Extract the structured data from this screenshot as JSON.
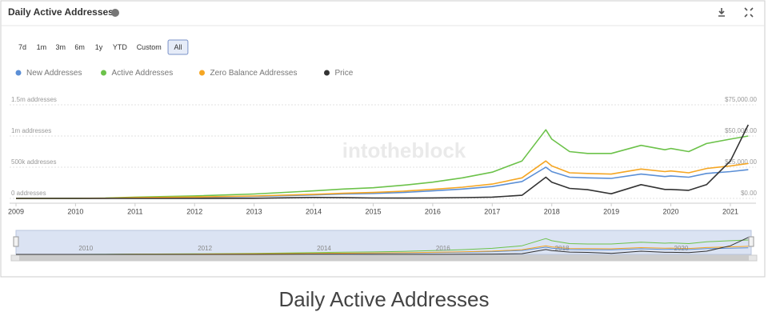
{
  "header": {
    "title": "Daily Active Addresses"
  },
  "toolbar": {
    "buttons": [
      "7d",
      "1m",
      "3m",
      "6m",
      "1y",
      "YTD",
      "Custom",
      "All"
    ],
    "active": "All"
  },
  "caption": "Daily Active Addresses",
  "chart_data": {
    "type": "line",
    "watermark": "intotheblock",
    "x": [
      2009,
      2010,
      2010.5,
      2011,
      2012,
      2013,
      2014,
      2014.5,
      2015,
      2015.5,
      2016,
      2016.5,
      2017,
      2017.5,
      2017.9,
      2018,
      2018.3,
      2018.6,
      2019,
      2019.5,
      2019.9,
      2020,
      2020.3,
      2020.6,
      2021,
      2021.3
    ],
    "xlim": [
      2009,
      2021.35
    ],
    "xticks": [
      2009,
      2010,
      2011,
      2012,
      2013,
      2014,
      2015,
      2016,
      2017,
      2018,
      2019,
      2020,
      2021
    ],
    "ylim": [
      0,
      1500000
    ],
    "yticks": [
      {
        "value": 0,
        "label": "0 addresses"
      },
      {
        "value": 500000,
        "label": "500k addresses"
      },
      {
        "value": 1000000,
        "label": "1m addresses"
      },
      {
        "value": 1500000,
        "label": "1.5m addresses"
      }
    ],
    "y2lim": [
      0,
      75000
    ],
    "y2ticks": [
      {
        "value": 0,
        "label": "$0.00"
      },
      {
        "value": 25000,
        "label": "$25,000.00"
      },
      {
        "value": 50000,
        "label": "$50,000.00"
      },
      {
        "value": 75000,
        "label": "$75,000.00"
      }
    ],
    "grid": true,
    "navigator_ticks": [
      2010,
      2012,
      2014,
      2016,
      2018,
      2020
    ],
    "series": [
      {
        "name": "New Addresses",
        "color": "#5b8fd6",
        "values": [
          0,
          500,
          2000,
          9000,
          18000,
          32000,
          55000,
          70000,
          80000,
          95000,
          120000,
          150000,
          190000,
          270000,
          500000,
          430000,
          340000,
          330000,
          320000,
          390000,
          350000,
          360000,
          340000,
          400000,
          430000,
          460000
        ]
      },
      {
        "name": "Active Addresses",
        "color": "#6cc24a",
        "values": [
          0,
          1000,
          5000,
          20000,
          40000,
          70000,
          120000,
          150000,
          170000,
          210000,
          260000,
          330000,
          420000,
          600000,
          1100000,
          950000,
          750000,
          720000,
          720000,
          850000,
          780000,
          800000,
          750000,
          880000,
          950000,
          1000000
        ]
      },
      {
        "name": "Zero Balance Addresses",
        "color": "#f5a623",
        "values": [
          0,
          600,
          2500,
          11000,
          22000,
          38000,
          65000,
          82000,
          95000,
          115000,
          145000,
          180000,
          230000,
          330000,
          600000,
          520000,
          410000,
          400000,
          390000,
          470000,
          430000,
          440000,
          410000,
          480000,
          520000,
          560000
        ]
      },
      {
        "name": "Price",
        "color": "#333333",
        "axis": "y2",
        "values": [
          0,
          0,
          0,
          10,
          10,
          100,
          800,
          600,
          300,
          250,
          400,
          650,
          1000,
          2500,
          17000,
          13000,
          8000,
          7000,
          3700,
          11000,
          7200,
          7200,
          6500,
          11000,
          30000,
          59000
        ]
      }
    ]
  }
}
